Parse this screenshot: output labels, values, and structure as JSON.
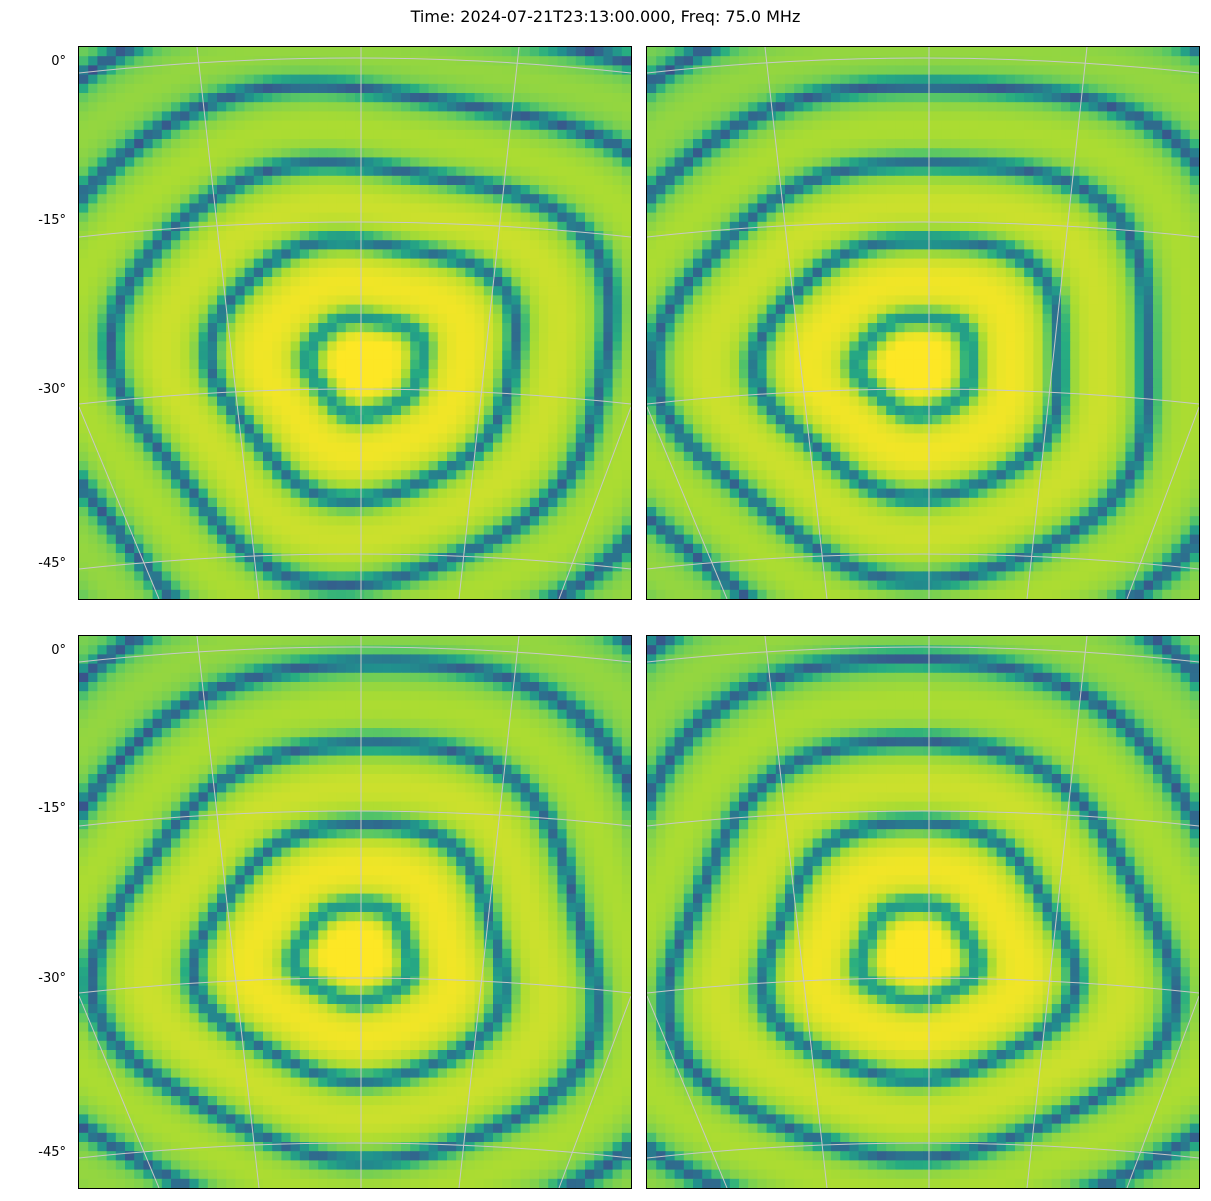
{
  "figure": {
    "title": "Time: 2024-07-21T23:13:00.000, Freq: 75.0 MHz"
  },
  "chart_data": [
    {
      "type": "heatmap",
      "panel": "top-left",
      "colormap": "viridis",
      "yticks": [
        "0°",
        "-15°",
        "-30°",
        "-45°"
      ],
      "beam_center": {
        "ra_frac": 0.52,
        "dec": -27
      },
      "grid": true
    },
    {
      "type": "heatmap",
      "panel": "top-right",
      "colormap": "viridis",
      "yticks": [],
      "beam_center": {
        "ra_frac": 0.49,
        "dec": -27
      },
      "grid": true
    },
    {
      "type": "heatmap",
      "panel": "bottom-left",
      "colormap": "viridis",
      "yticks": [
        "0°",
        "-15°",
        "-30°",
        "-45°"
      ],
      "beam_center": {
        "ra_frac": 0.5,
        "dec": -27
      },
      "grid": true
    },
    {
      "type": "heatmap",
      "panel": "bottom-right",
      "colormap": "viridis",
      "yticks": [],
      "beam_center": {
        "ra_frac": 0.49,
        "dec": -27
      },
      "grid": true
    }
  ],
  "colors": {
    "low": "#440154",
    "mid": "#21908c",
    "high": "#fde725",
    "grid": "#c8c8c8"
  }
}
